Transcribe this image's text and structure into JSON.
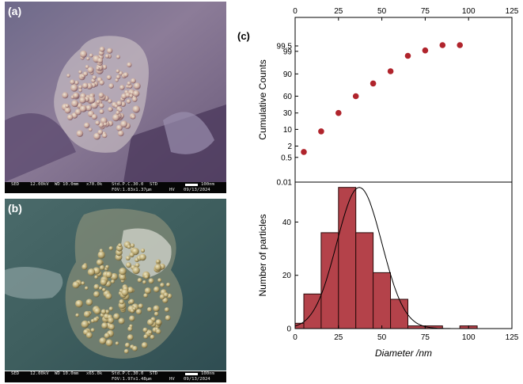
{
  "panels": {
    "a": {
      "label": "(a)",
      "sem": {
        "detector": "SED",
        "voltage": "12.00kV",
        "wd": "WD 10.0mm",
        "mag": "x70.0k",
        "std": "Std.P.C.30.0",
        "mode": "STD",
        "fov": "FOV:1.83x1.37µm",
        "hv": "HV",
        "scale": "100nm",
        "date": "09/13/2024"
      }
    },
    "b": {
      "label": "(b)",
      "sem": {
        "detector": "SED",
        "voltage": "12.00kV",
        "wd": "WD 10.0mm",
        "mag": "x65.0k",
        "std": "Std.P.C.30.0",
        "mode": "STD",
        "fov": "FOV:1.97x1.48µm",
        "hv": "HV",
        "scale": "100nm",
        "date": "09/13/2024"
      }
    },
    "c": {
      "label": "(c)"
    }
  },
  "colors": {
    "marker": "#b0242c",
    "bar_fill": "#b4424a",
    "bar_edge": "#2a0a0a",
    "fit_line": "#000000",
    "axis": "#000000"
  },
  "chart_data": [
    {
      "type": "scatter",
      "ylabel": "Cumulative Counts",
      "xlim": [
        0,
        125
      ],
      "x_ticks": [
        0,
        25,
        50,
        75,
        100,
        125
      ],
      "y_scale": "probability",
      "y_ticks": [
        "0.01",
        "0.5",
        "2",
        "10",
        "30",
        "60",
        "90",
        "99",
        "99.5"
      ],
      "x": [
        5,
        15,
        25,
        35,
        45,
        55,
        65,
        75,
        85,
        95
      ],
      "y": [
        1.0,
        8.5,
        30.0,
        60.0,
        80.0,
        92.0,
        98.3,
        99.1,
        99.55,
        99.55
      ]
    },
    {
      "type": "bar",
      "xlabel": "Diameter /nm",
      "ylabel": "Number of particles",
      "xlim": [
        0,
        125
      ],
      "ylim": [
        0,
        55
      ],
      "x_ticks": [
        0,
        25,
        50,
        75,
        100,
        125
      ],
      "y_ticks": [
        0,
        20,
        40
      ],
      "bin_width": 10,
      "bin_centers": [
        0,
        10,
        20,
        30,
        40,
        50,
        60,
        70,
        80,
        90,
        100,
        110
      ],
      "values": [
        2,
        13,
        36,
        53,
        36,
        21,
        11,
        1,
        1,
        0,
        1,
        0
      ],
      "gaussian_fit": {
        "center": 37,
        "sigma": 13,
        "amplitude": 53
      }
    }
  ]
}
